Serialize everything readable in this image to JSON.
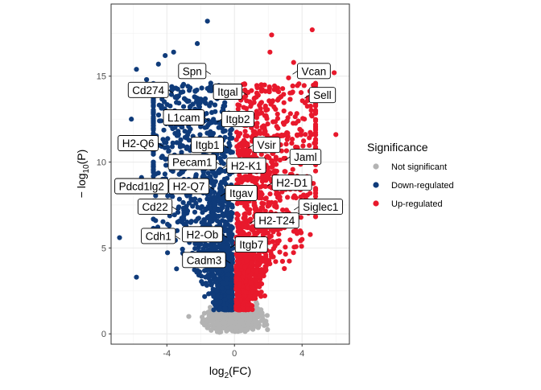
{
  "chart_data": {
    "type": "scatter",
    "title": "",
    "xlabel_base": "log",
    "xlabel_sub": "2",
    "xlabel_rest": "(FC)",
    "ylabel_prefix": "− log",
    "ylabel_sub": "10",
    "ylabel_rest": "(P)",
    "xlim": [
      -7.3,
      6.8
    ],
    "ylim": [
      -0.6,
      19.2
    ],
    "xticks": [
      -4,
      0,
      4
    ],
    "xticks_labels": [
      "-4",
      "0",
      "4"
    ],
    "yticks": [
      0,
      5,
      10,
      15
    ],
    "yticks_labels": [
      "0",
      "5",
      "10",
      "15"
    ],
    "grid": true,
    "legend": {
      "title": "Significance",
      "placement": "right",
      "entries": [
        {
          "label": "Not significant",
          "color": "#b3b3b3"
        },
        {
          "label": "Down-regulated",
          "color": "#0f3b7a"
        },
        {
          "label": "Up-regulated",
          "color": "#e8192c"
        }
      ]
    },
    "colors": {
      "not_significant": "#b3b3b3",
      "down": "#0f3b7a",
      "up": "#e8192c"
    },
    "outlier_points": {
      "down": [
        [
          -1.6,
          18.2
        ],
        [
          -4.1,
          16.2
        ],
        [
          -4.5,
          15.7
        ],
        [
          -5.8,
          15.4
        ],
        [
          -6.8,
          5.6
        ],
        [
          -5.8,
          3.3
        ],
        [
          -5.2,
          14.8
        ],
        [
          -3.6,
          16.4
        ],
        [
          -2.2,
          16.9
        ],
        [
          -6.1,
          12.5
        ],
        [
          -5.5,
          9.1
        ],
        [
          -4.8,
          7.2
        ]
      ],
      "up": [
        [
          2.2,
          17.4
        ],
        [
          4.6,
          17.7
        ],
        [
          5.9,
          15.2
        ],
        [
          3.5,
          15.8
        ],
        [
          5.3,
          13.6
        ],
        [
          4.8,
          12.4
        ],
        [
          2.1,
          16.4
        ],
        [
          6.0,
          11.6
        ],
        [
          4.2,
          9.0
        ],
        [
          5.5,
          7.3
        ],
        [
          4.0,
          5.5
        ],
        [
          3.2,
          14.9
        ]
      ]
    },
    "labels": [
      {
        "text": "Spn",
        "x": -2.5,
        "y": 15.3
      },
      {
        "text": "Cd274",
        "x": -5.1,
        "y": 14.2
      },
      {
        "text": "Itgal",
        "x": -0.4,
        "y": 14.1
      },
      {
        "text": "L1cam",
        "x": -3.0,
        "y": 12.6
      },
      {
        "text": "Itgb2",
        "x": 0.2,
        "y": 12.5
      },
      {
        "text": "H2-Q6",
        "x": -5.7,
        "y": 11.1
      },
      {
        "text": "Itgb1",
        "x": -1.6,
        "y": 11.0
      },
      {
        "text": "Vsir",
        "x": 1.9,
        "y": 11.0
      },
      {
        "text": "Jaml",
        "x": 4.2,
        "y": 10.3
      },
      {
        "text": "Pecam1",
        "x": -2.5,
        "y": 10.0
      },
      {
        "text": "H2-K1",
        "x": 0.7,
        "y": 9.8
      },
      {
        "text": "H2-D1",
        "x": 3.4,
        "y": 8.8
      },
      {
        "text": "Pdcd1lg2",
        "x": -5.5,
        "y": 8.6
      },
      {
        "text": "H2-Q7",
        "x": -2.7,
        "y": 8.6
      },
      {
        "text": "Itgav",
        "x": 0.4,
        "y": 8.2
      },
      {
        "text": "Siglec1",
        "x": 5.1,
        "y": 7.4
      },
      {
        "text": "Cd22",
        "x": -4.7,
        "y": 7.4
      },
      {
        "text": "H2-T24",
        "x": 2.5,
        "y": 6.6
      },
      {
        "text": "Cdh1",
        "x": -4.5,
        "y": 5.7
      },
      {
        "text": "H2-Ob",
        "x": -1.9,
        "y": 5.8
      },
      {
        "text": "Itgb7",
        "x": 1.0,
        "y": 5.2
      },
      {
        "text": "Cadm3",
        "x": -1.8,
        "y": 4.3
      },
      {
        "text": "Vcan",
        "x": 4.7,
        "y": 15.3
      },
      {
        "text": "Sell",
        "x": 5.2,
        "y": 13.9
      }
    ]
  }
}
